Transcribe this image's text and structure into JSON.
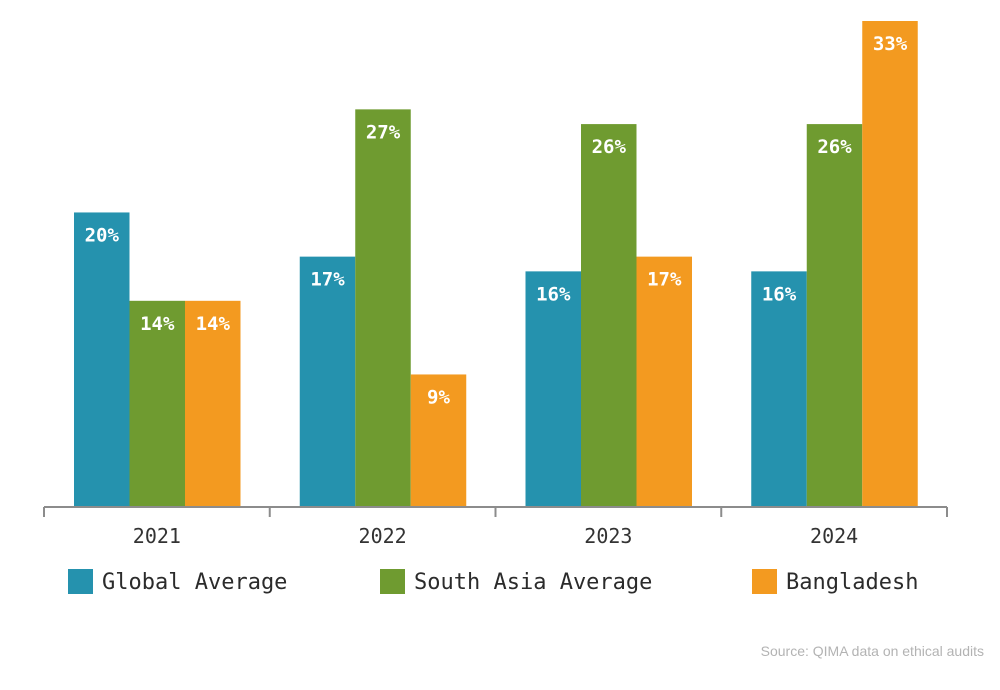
{
  "chart_data": {
    "type": "bar",
    "categories": [
      "2021",
      "2022",
      "2023",
      "2024"
    ],
    "series": [
      {
        "name": "Global Average",
        "color": "#2592ae",
        "values": [
          20,
          17,
          16,
          16
        ],
        "labels": [
          "20%",
          "17%",
          "16%",
          "16%"
        ]
      },
      {
        "name": "South Asia Average",
        "color": "#6f9b30",
        "values": [
          14,
          27,
          26,
          26
        ],
        "labels": [
          "14%",
          "27%",
          "26%",
          "26%"
        ]
      },
      {
        "name": "Bangladesh",
        "color": "#f39a20",
        "values": [
          14,
          9,
          17,
          33
        ],
        "labels": [
          "14%",
          "9%",
          "17%",
          "33%"
        ]
      }
    ],
    "ylim": [
      0,
      33
    ],
    "grid": false,
    "legend_position": "bottom",
    "title": "",
    "xlabel": "",
    "ylabel": ""
  },
  "source": "Source: QIMA data on ethical audits"
}
